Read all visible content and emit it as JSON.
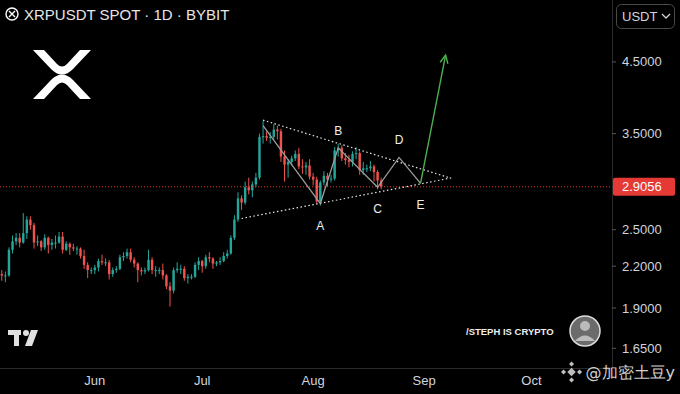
{
  "chart_data": {
    "type": "candlestick",
    "title": "XRPUSDT SPOT · 1D · BYBIT",
    "currency": "USDT",
    "credit": "/STEPH IS CRYPTO",
    "watermark": "@加密土豆y",
    "categories": [
      null,
      null,
      null,
      null,
      null,
      null,
      null,
      null,
      null,
      null,
      null,
      null,
      null,
      null,
      null,
      null,
      null,
      null,
      null,
      null,
      null,
      null,
      null,
      null,
      null,
      null,
      "Jun",
      null,
      null,
      null,
      null,
      null,
      null,
      null,
      null,
      null,
      null,
      null,
      null,
      null,
      null,
      null,
      null,
      null,
      null,
      null,
      null,
      null,
      null,
      null,
      null,
      null,
      null,
      null,
      null,
      null,
      "Jul",
      null,
      null,
      null,
      null,
      null,
      null,
      null,
      null,
      null,
      null,
      null,
      null,
      null,
      null,
      null,
      null,
      null,
      null,
      null,
      null,
      null,
      null,
      null,
      null,
      null,
      null,
      null,
      null,
      null,
      null,
      "Aug",
      null,
      null,
      null,
      null,
      null,
      null,
      null,
      null,
      null,
      null,
      null,
      null,
      null,
      null,
      null,
      null,
      null,
      null,
      null,
      null,
      null,
      null,
      null,
      null,
      null,
      null,
      null,
      null,
      null,
      null,
      "Sep",
      null,
      null,
      null,
      null,
      null,
      null,
      null,
      null,
      null,
      null,
      null,
      null,
      null,
      null,
      null,
      null,
      null,
      null,
      null,
      null,
      null,
      null,
      null,
      null,
      null,
      null,
      null,
      null,
      null,
      "Oct",
      null,
      null,
      null,
      null,
      null,
      null,
      null,
      null,
      null,
      null,
      null,
      null,
      null,
      null,
      null,
      null,
      null,
      null,
      null,
      null,
      null,
      null
    ],
    "open": [
      2.14,
      2.13,
      2.13,
      2.33,
      2.4,
      2.43,
      2.39,
      2.47,
      2.59,
      2.54,
      2.39,
      2.4,
      2.35,
      2.43,
      2.37,
      2.39,
      2.39,
      2.44,
      2.33,
      2.38,
      2.35,
      2.34,
      2.34,
      2.28,
      2.21,
      2.17,
      2.17,
      2.19,
      2.24,
      2.23,
      2.23,
      2.14,
      2.17,
      2.18,
      2.27,
      2.28,
      2.31,
      2.25,
      2.22,
      2.17,
      2.16,
      2.17,
      2.25,
      2.17,
      2.17,
      2.17,
      2.13,
      2.05,
      2.02,
      2.17,
      2.18,
      2.18,
      2.11,
      2.12,
      2.12,
      2.21,
      2.24,
      2.2,
      2.27,
      2.26,
      2.22,
      2.23,
      2.24,
      2.28,
      2.3,
      2.43,
      2.59,
      2.79,
      2.75,
      2.9,
      2.87,
      2.93,
      3.0,
      3.46,
      3.47,
      3.45,
      3.46,
      3.55,
      3.53,
      3.23,
      3.14,
      3.17,
      3.21,
      3.26,
      3.12,
      3.11,
      3.13,
      3.01,
      2.98,
      2.76,
      2.95,
      3.02,
      2.98,
      2.99,
      3.3,
      3.33,
      3.21,
      3.19,
      3.17,
      3.26,
      3.27,
      3.08,
      3.1,
      3.1,
      3.12,
      3.06,
      2.97,
      null,
      null,
      null,
      null,
      null,
      null,
      null,
      null,
      null,
      null,
      null,
      null,
      null,
      null,
      null,
      null,
      null,
      null,
      null,
      null,
      null,
      null,
      null,
      null,
      null,
      null,
      null,
      null,
      null,
      null,
      null,
      null,
      null,
      null,
      null,
      null,
      null,
      null,
      null,
      null,
      null,
      null,
      null,
      null,
      null,
      null,
      null,
      null,
      null,
      null,
      null,
      null,
      null,
      null,
      null,
      null,
      null,
      null,
      null,
      null,
      null,
      null,
      null,
      null
    ],
    "high": [
      2.17,
      2.16,
      2.35,
      2.45,
      2.47,
      2.47,
      2.65,
      2.62,
      2.62,
      2.56,
      2.45,
      2.41,
      2.46,
      2.44,
      2.42,
      2.45,
      2.48,
      2.48,
      2.4,
      2.39,
      2.38,
      2.36,
      2.35,
      2.33,
      2.23,
      2.19,
      2.21,
      2.26,
      2.29,
      2.26,
      2.25,
      2.19,
      2.2,
      2.29,
      2.31,
      2.34,
      2.34,
      2.27,
      2.23,
      2.19,
      2.19,
      2.33,
      2.27,
      2.2,
      2.19,
      2.22,
      2.14,
      2.08,
      2.19,
      2.23,
      2.21,
      2.2,
      2.14,
      2.14,
      2.23,
      2.27,
      2.25,
      2.29,
      2.31,
      2.27,
      2.24,
      2.27,
      2.31,
      2.33,
      2.45,
      2.63,
      2.85,
      2.82,
      2.96,
      3.0,
      2.96,
      3.05,
      3.5,
      3.66,
      3.53,
      3.52,
      3.62,
      3.6,
      3.56,
      3.3,
      3.2,
      3.24,
      3.3,
      3.33,
      3.2,
      3.17,
      3.2,
      3.05,
      3.01,
      2.97,
      3.07,
      3.05,
      3.03,
      3.34,
      3.38,
      3.36,
      3.27,
      3.25,
      3.29,
      3.34,
      3.29,
      3.17,
      3.14,
      3.18,
      3.14,
      3.08,
      3.0,
      null,
      null,
      null,
      null,
      null,
      null,
      null,
      null,
      null,
      null,
      null,
      null,
      null,
      null,
      null,
      null,
      null,
      null,
      null,
      null,
      null,
      null,
      null,
      null,
      null,
      null,
      null,
      null,
      null,
      null,
      null,
      null,
      null,
      null,
      null,
      null,
      null,
      null,
      null,
      null,
      null,
      null,
      null,
      null,
      null,
      null,
      null,
      null,
      null,
      null,
      null,
      null,
      null,
      null,
      null,
      null,
      null,
      null,
      null,
      null,
      null,
      null,
      null,
      null
    ],
    "low": [
      2.09,
      2.08,
      2.12,
      2.3,
      2.37,
      2.35,
      2.38,
      2.42,
      2.5,
      2.34,
      2.36,
      2.32,
      2.33,
      2.3,
      2.33,
      2.34,
      2.38,
      2.3,
      2.32,
      2.29,
      2.32,
      2.29,
      2.26,
      2.18,
      2.11,
      2.14,
      2.14,
      2.16,
      2.21,
      2.2,
      2.1,
      2.12,
      2.15,
      2.17,
      2.24,
      2.26,
      2.23,
      2.19,
      2.08,
      2.13,
      2.14,
      2.16,
      2.14,
      2.12,
      2.14,
      2.1,
      2.03,
      1.91,
      2.0,
      2.15,
      2.14,
      2.09,
      2.07,
      2.1,
      2.11,
      2.17,
      2.15,
      2.18,
      2.23,
      2.18,
      2.2,
      2.21,
      2.23,
      2.26,
      2.29,
      2.41,
      2.57,
      2.68,
      2.73,
      2.83,
      2.8,
      2.9,
      2.98,
      3.38,
      3.41,
      3.38,
      3.43,
      3.43,
      3.17,
      2.96,
      3.0,
      3.13,
      3.18,
      3.09,
      3.04,
      3.03,
      2.98,
      2.92,
      2.74,
      2.72,
      2.92,
      2.91,
      2.95,
      2.97,
      3.23,
      3.18,
      3.14,
      3.11,
      3.12,
      3.2,
      3.03,
      3.03,
      3.06,
      3.07,
      2.96,
      2.88,
      2.88,
      null,
      null,
      null,
      null,
      null,
      null,
      null,
      null,
      null,
      null,
      null,
      null,
      null,
      null,
      null,
      null,
      null,
      null,
      null,
      null,
      null,
      null,
      null,
      null,
      null,
      null,
      null,
      null,
      null,
      null,
      null,
      null,
      null,
      null,
      null,
      null,
      null,
      null,
      null,
      null,
      null,
      null,
      null,
      null,
      null,
      null,
      null,
      null,
      null,
      null,
      null,
      null,
      null,
      null,
      null,
      null,
      null,
      null,
      null,
      null,
      null,
      null,
      null,
      null
    ],
    "close": [
      2.13,
      2.13,
      2.33,
      2.4,
      2.43,
      2.39,
      2.47,
      2.59,
      2.54,
      2.39,
      2.4,
      2.35,
      2.43,
      2.37,
      2.39,
      2.39,
      2.44,
      2.33,
      2.38,
      2.35,
      2.34,
      2.34,
      2.28,
      2.21,
      2.17,
      2.17,
      2.19,
      2.24,
      2.23,
      2.23,
      2.14,
      2.17,
      2.18,
      2.27,
      2.28,
      2.31,
      2.25,
      2.22,
      2.17,
      2.16,
      2.17,
      2.25,
      2.17,
      2.17,
      2.17,
      2.13,
      2.05,
      2.02,
      2.17,
      2.18,
      2.18,
      2.11,
      2.12,
      2.12,
      2.21,
      2.24,
      2.2,
      2.27,
      2.26,
      2.22,
      2.23,
      2.24,
      2.28,
      2.3,
      2.43,
      2.59,
      2.79,
      2.75,
      2.9,
      2.87,
      2.93,
      3.0,
      3.46,
      3.47,
      3.45,
      3.46,
      3.55,
      3.53,
      3.23,
      3.14,
      3.17,
      3.21,
      3.26,
      3.12,
      3.11,
      3.13,
      3.01,
      2.98,
      2.76,
      2.95,
      3.02,
      2.98,
      2.99,
      3.3,
      3.33,
      3.21,
      3.19,
      3.17,
      3.26,
      3.27,
      3.08,
      3.1,
      3.1,
      3.12,
      3.06,
      2.97,
      2.9056,
      null,
      null,
      null,
      null,
      null,
      null,
      null,
      null,
      null,
      null,
      null,
      null,
      null,
      null,
      null,
      null,
      null,
      null,
      null,
      null,
      null,
      null,
      null,
      null,
      null,
      null,
      null,
      null,
      null,
      null,
      null,
      null,
      null,
      null,
      null,
      null,
      null,
      null,
      null,
      null,
      null,
      null,
      null,
      null,
      null,
      null,
      null,
      null,
      null,
      null,
      null,
      null,
      null,
      null,
      null,
      null,
      null,
      null,
      null,
      null,
      null,
      null,
      null,
      null
    ],
    "ylim": [
      1.54,
      5.59
    ],
    "yticks": [
      {
        "value": 1.65,
        "label": "1.6500"
      },
      {
        "value": 1.9,
        "label": "1.9000"
      },
      {
        "value": 2.2,
        "label": "2.2000"
      },
      {
        "value": 2.5,
        "label": "2.5000"
      },
      {
        "value": 3.5,
        "label": "3.5000"
      },
      {
        "value": 4.5,
        "label": "4.5000"
      }
    ],
    "log": "y",
    "grid": false,
    "last_price": 2.9056,
    "annotations": {
      "trendlines": [
        {
          "x": [
            73,
            125
          ],
          "y": [
            3.67,
            3.0
          ]
        },
        {
          "x": [
            67,
            126
          ],
          "y": [
            2.6,
            3.0
          ]
        }
      ],
      "wave": [
        {
          "x": 73,
          "y": 3.6
        },
        {
          "x": 89,
          "y": 2.74,
          "label": "A"
        },
        {
          "x": 94,
          "y": 3.33,
          "label": "B"
        },
        {
          "x": 105,
          "y": 2.9,
          "label": "C"
        },
        {
          "x": 111,
          "y": 3.22,
          "label": "D"
        },
        {
          "x": 117,
          "y": 2.94,
          "label": "E"
        }
      ],
      "target": {
        "x": 124,
        "y": 4.61
      }
    }
  }
}
